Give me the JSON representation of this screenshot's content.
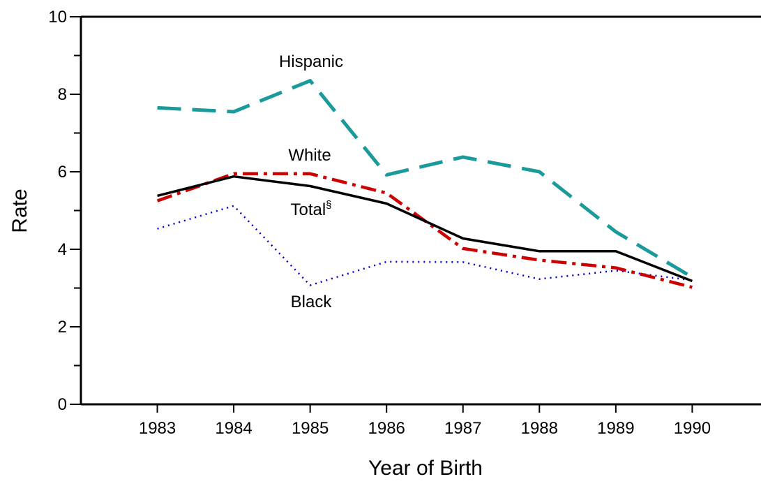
{
  "chart_data": {
    "type": "line",
    "title": "",
    "xlabel": "Year of Birth",
    "ylabel": "Rate",
    "x": [
      1983,
      1984,
      1985,
      1986,
      1987,
      1988,
      1989,
      1990
    ],
    "x_tick_labels": [
      "1983",
      "1984",
      "1985",
      "1986",
      "1987",
      "1988",
      "1989",
      "1990"
    ],
    "ylim": [
      0,
      10
    ],
    "y_ticks": [
      0,
      2,
      4,
      6,
      8,
      10
    ],
    "y_tick_labels": [
      "0",
      "2",
      "4",
      "6",
      "8",
      "10"
    ],
    "grid": false,
    "legend": "none (series labeled directly on chart)",
    "series": [
      {
        "name": "Hispanic",
        "label_text": "Hispanic",
        "values": [
          7.65,
          7.55,
          8.35,
          5.92,
          6.38,
          6.0,
          4.45,
          3.28
        ],
        "color": "#1a9a9a",
        "style": "dashed"
      },
      {
        "name": "White",
        "label_text": "White",
        "values": [
          5.25,
          5.95,
          5.95,
          5.45,
          4.02,
          3.72,
          3.52,
          3.02
        ],
        "color": "#cc0000",
        "style": "dash-dot"
      },
      {
        "name": "Total§",
        "label_text": "Total",
        "label_sup": "§",
        "values": [
          5.38,
          5.88,
          5.63,
          5.18,
          4.28,
          3.95,
          3.95,
          3.18
        ],
        "color": "#000000",
        "style": "solid"
      },
      {
        "name": "Black",
        "label_text": "Black",
        "values": [
          4.53,
          5.12,
          3.07,
          3.68,
          3.67,
          3.23,
          3.45,
          3.2
        ],
        "color": "#0000cc",
        "style": "dotted"
      }
    ]
  }
}
